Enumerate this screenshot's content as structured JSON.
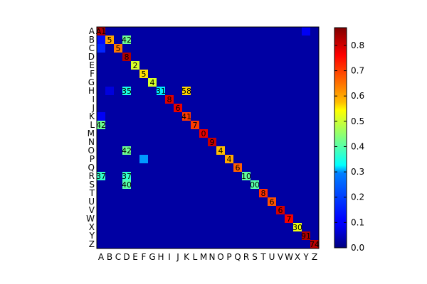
{
  "chart_data": {
    "type": "heatmap",
    "title": "",
    "xlabel": "",
    "ylabel": "",
    "colormap": "jet",
    "grid": false,
    "rows": [
      "A",
      "B",
      "C",
      "D",
      "E",
      "F",
      "G",
      "H",
      "I",
      "J",
      "K",
      "L",
      "M",
      "N",
      "O",
      "P",
      "Q",
      "R",
      "S",
      "T",
      "U",
      "V",
      "W",
      "X",
      "Y",
      "Z"
    ],
    "columns": [
      "A",
      "B",
      "C",
      "D",
      "E",
      "F",
      "G",
      "H",
      "I",
      "J",
      "K",
      "L",
      "M",
      "N",
      "O",
      "P",
      "Q",
      "R",
      "S",
      "T",
      "U",
      "V",
      "W",
      "X",
      "Y",
      "Z"
    ],
    "diagonal_values": [
      0.83,
      0.62,
      0.66,
      0.83,
      0.51,
      0.57,
      0.51,
      0.31,
      0.79,
      0.78,
      0.71,
      0.71,
      0.78,
      0.81,
      0.6,
      0.62,
      0.68,
      0.41,
      0.4,
      0.72,
      0.69,
      0.8,
      0.77,
      0.53,
      0.83,
      0.82
    ],
    "diagonal_labels": [
      "1",
      "5",
      "5",
      "8",
      "2",
      "5",
      "4",
      "3",
      "8",
      "6",
      "4",
      "7",
      "0",
      "9",
      "4",
      "4",
      "6",
      "1",
      "0",
      "8",
      "6",
      "6",
      "7",
      "3",
      "9",
      "7"
    ],
    "off_diagonal": [
      {
        "row": "A",
        "col": "Y",
        "value": 0.1
      },
      {
        "row": "B",
        "col": "D",
        "value": 0.42
      },
      {
        "row": "B",
        "col": "A",
        "value": 0.12
      },
      {
        "row": "C",
        "col": "A",
        "value": 0.14
      },
      {
        "row": "H",
        "col": "B",
        "value": 0.08
      },
      {
        "row": "H",
        "col": "D",
        "value": 0.35
      },
      {
        "row": "H",
        "col": "K",
        "value": 0.58
      },
      {
        "row": "K",
        "col": "A",
        "value": 0.1
      },
      {
        "row": "L",
        "col": "A",
        "value": 0.42
      },
      {
        "row": "O",
        "col": "D",
        "value": 0.42
      },
      {
        "row": "P",
        "col": "F",
        "value": 0.24
      },
      {
        "row": "R",
        "col": "A",
        "value": 0.37
      },
      {
        "row": "R",
        "col": "D",
        "value": 0.37
      },
      {
        "row": "S",
        "col": "D",
        "value": 0.4
      }
    ],
    "extra_labels": [
      {
        "row": "A",
        "col": "A",
        "text": "A1"
      },
      {
        "row": "H",
        "col": "H",
        "text": "31"
      },
      {
        "row": "Z",
        "col": "Z",
        "text": "74"
      },
      {
        "row": "X",
        "col": "X",
        "text": "30"
      },
      {
        "row": "B",
        "col": "D",
        "text": "42"
      },
      {
        "row": "H",
        "col": "D",
        "text": "35"
      },
      {
        "row": "H",
        "col": "K",
        "text": "58"
      },
      {
        "row": "O",
        "col": "D",
        "text": "42"
      },
      {
        "row": "R",
        "col": "A",
        "text": "37"
      },
      {
        "row": "R",
        "col": "D",
        "text": "37"
      },
      {
        "row": "S",
        "col": "D",
        "text": "40"
      },
      {
        "row": "L",
        "col": "A",
        "text": "42"
      },
      {
        "row": "K",
        "col": "K",
        "text": "41"
      },
      {
        "row": "R",
        "col": "R",
        "text": "10"
      },
      {
        "row": "S",
        "col": "S",
        "text": "00"
      },
      {
        "row": "Y",
        "col": "Y",
        "text": "91"
      }
    ],
    "colorbar": {
      "min": 0.0,
      "max": 0.87,
      "ticks": [
        0.0,
        0.1,
        0.2,
        0.3,
        0.4,
        0.5,
        0.6,
        0.7,
        0.8
      ],
      "tick_labels": [
        "0.0",
        "0.1",
        "0.2",
        "0.3",
        "0.4",
        "0.5",
        "0.6",
        "0.7",
        "0.8"
      ]
    }
  }
}
